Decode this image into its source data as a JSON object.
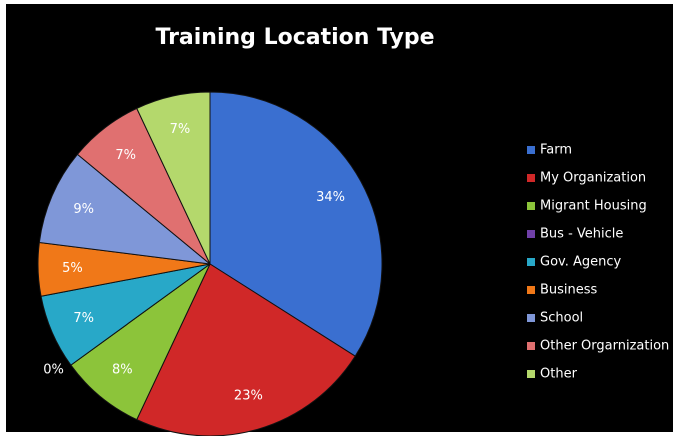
{
  "chart_data": {
    "type": "pie",
    "title": "Training Location Type",
    "categories": [
      "Farm",
      "My Organization",
      "Migrant Housing",
      "Bus - Vehicle",
      "Gov. Agency",
      "Business",
      "School",
      "Other Orgarnization",
      "Other"
    ],
    "values": [
      34,
      23,
      8,
      0,
      7,
      5,
      9,
      7,
      7
    ],
    "value_labels": [
      "34%",
      "23%",
      "8%",
      "0%",
      "7%",
      "5%",
      "9%",
      "7%",
      "7%"
    ],
    "colors": [
      "#3a6fd0",
      "#d02828",
      "#8cc43a",
      "#7040a8",
      "#28a8c8",
      "#f07818",
      "#7f97d8",
      "#e07070",
      "#b4d86c"
    ],
    "legend": "right"
  }
}
